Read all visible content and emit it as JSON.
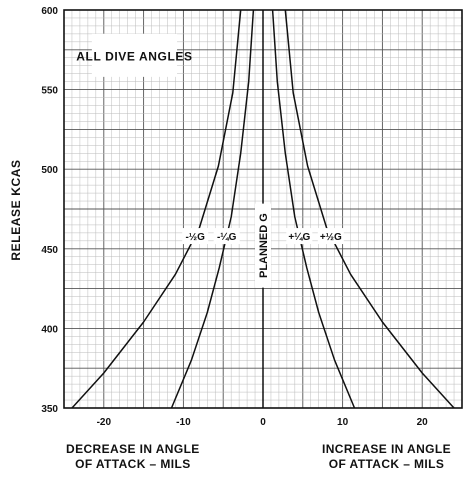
{
  "chart_data": {
    "type": "line",
    "title": "",
    "annotation": "ALL DIVE ANGLES",
    "ylabel": "RELEASE KCAS",
    "xlabel_left": [
      "DECREASE IN ANGLE",
      "OF ATTACK – MILS"
    ],
    "xlabel_right": [
      "INCREASE IN ANGLE",
      "OF ATTACK – MILS"
    ],
    "xlim": [
      -25,
      25
    ],
    "ylim": [
      350,
      600
    ],
    "x_ticks": [
      -20,
      -10,
      0,
      10,
      20
    ],
    "y_ticks": [
      350,
      400,
      450,
      500,
      550,
      600
    ],
    "grid": true,
    "series": [
      {
        "name": "-½G",
        "points": [
          [
            -24,
            350
          ],
          [
            -20,
            372
          ],
          [
            -15,
            404
          ],
          [
            -11,
            434
          ],
          [
            -8,
            463
          ],
          [
            -5.6,
            502
          ],
          [
            -3.8,
            548
          ],
          [
            -2.8,
            600
          ]
        ]
      },
      {
        "name": "-¼G",
        "points": [
          [
            -11.5,
            350
          ],
          [
            -9,
            380
          ],
          [
            -7,
            410
          ],
          [
            -5.5,
            438
          ],
          [
            -4,
            470
          ],
          [
            -2.8,
            510
          ],
          [
            -1.8,
            555
          ],
          [
            -1.2,
            600
          ]
        ]
      },
      {
        "name": "+¼G",
        "points": [
          [
            11.5,
            350
          ],
          [
            9,
            380
          ],
          [
            7,
            410
          ],
          [
            5.5,
            438
          ],
          [
            4,
            470
          ],
          [
            2.8,
            510
          ],
          [
            1.8,
            555
          ],
          [
            1.2,
            600
          ]
        ]
      },
      {
        "name": "+½G",
        "points": [
          [
            24,
            350
          ],
          [
            20,
            372
          ],
          [
            15,
            404
          ],
          [
            11,
            434
          ],
          [
            8,
            463
          ],
          [
            5.6,
            502
          ],
          [
            3.8,
            548
          ],
          [
            2.8,
            600
          ]
        ]
      },
      {
        "name": "PLANNED G",
        "points": [
          [
            0,
            350
          ],
          [
            0,
            600
          ]
        ]
      }
    ],
    "series_label_y": [
      458,
      458,
      458,
      458,
      452
    ]
  }
}
